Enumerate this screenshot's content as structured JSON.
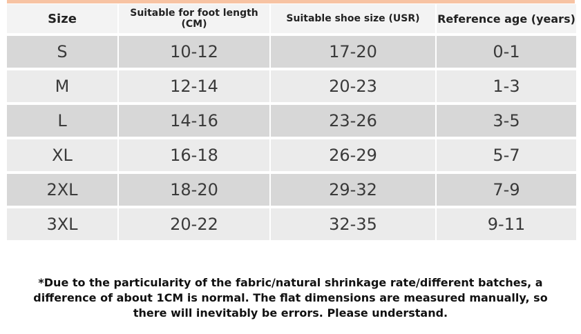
{
  "table": {
    "headers": [
      "Size",
      "Suitable for foot length (CM)",
      "Suitable shoe size (USR)",
      "Reference age (years)"
    ],
    "rows": [
      [
        "S",
        "10-12",
        "17-20",
        "0-1"
      ],
      [
        "M",
        "12-14",
        "20-23",
        "1-3"
      ],
      [
        "L",
        "14-16",
        "23-26",
        "3-5"
      ],
      [
        "XL",
        "16-18",
        "26-29",
        "5-7"
      ],
      [
        "2XL",
        "18-20",
        "29-32",
        "7-9"
      ],
      [
        "3XL",
        "20-22",
        "32-35",
        "9-11"
      ]
    ]
  },
  "note": "*Due to the particularity of the fabric/natural shrinkage rate/different batches, a difference of about 1CM is normal. The flat dimensions are measured manually, so there will inevitably be errors. Please understand.",
  "colors": {
    "accent_bar": "#f7c3a3",
    "header_bg": "#f3f3f3",
    "row_dark": "#d7d7d7",
    "row_light": "#ebebeb"
  }
}
